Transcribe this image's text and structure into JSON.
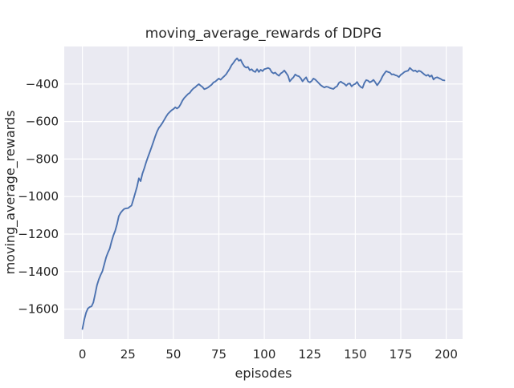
{
  "chart_data": {
    "type": "line",
    "title": "moving_average_rewards of DDPG",
    "xlabel": "episodes",
    "ylabel": "moving_average_rewards",
    "xlim": [
      -10,
      209
    ],
    "ylim": [
      -1760,
      -200
    ],
    "grid": true,
    "legend": false,
    "plot_bg": "#eaeaf2",
    "grid_color": "#ffffff",
    "line_color": "#4c72b0",
    "text_color": "#262626",
    "x_ticks": {
      "values": [
        0,
        25,
        50,
        75,
        100,
        125,
        150,
        175,
        200
      ],
      "labels": [
        "0",
        "25",
        "50",
        "75",
        "100",
        "125",
        "150",
        "175",
        "200"
      ]
    },
    "y_ticks": {
      "values": [
        -400,
        -600,
        -800,
        -1000,
        -1200,
        -1400,
        -1600
      ],
      "labels": [
        "−400",
        "−600",
        "−800",
        "−1000",
        "−1200",
        "−1400",
        "−1600"
      ]
    },
    "series": [
      {
        "name": "moving_average_rewards",
        "x_start": 0,
        "x_step": 1,
        "y": [
          -1706,
          -1656,
          -1619,
          -1597,
          -1589,
          -1585,
          -1565,
          -1520,
          -1472,
          -1442,
          -1418,
          -1397,
          -1362,
          -1325,
          -1299,
          -1278,
          -1240,
          -1207,
          -1183,
          -1148,
          -1105,
          -1087,
          -1075,
          -1066,
          -1063,
          -1062,
          -1055,
          -1048,
          -1015,
          -982,
          -948,
          -902,
          -918,
          -877,
          -849,
          -818,
          -790,
          -764,
          -737,
          -708,
          -680,
          -654,
          -634,
          -622,
          -607,
          -590,
          -574,
          -559,
          -549,
          -540,
          -534,
          -524,
          -531,
          -523,
          -508,
          -488,
          -474,
          -464,
          -454,
          -447,
          -434,
          -424,
          -417,
          -408,
          -401,
          -409,
          -416,
          -428,
          -424,
          -419,
          -411,
          -404,
          -392,
          -387,
          -379,
          -371,
          -377,
          -367,
          -358,
          -348,
          -333,
          -318,
          -299,
          -287,
          -273,
          -263,
          -276,
          -271,
          -291,
          -306,
          -313,
          -309,
          -326,
          -321,
          -331,
          -336,
          -321,
          -336,
          -324,
          -331,
          -321,
          -318,
          -314,
          -319,
          -336,
          -343,
          -339,
          -349,
          -356,
          -344,
          -337,
          -328,
          -341,
          -356,
          -386,
          -374,
          -364,
          -349,
          -356,
          -359,
          -369,
          -386,
          -374,
          -364,
          -386,
          -391,
          -384,
          -371,
          -376,
          -386,
          -396,
          -406,
          -413,
          -419,
          -414,
          -416,
          -421,
          -424,
          -426,
          -417,
          -412,
          -394,
          -387,
          -394,
          -399,
          -409,
          -399,
          -397,
          -413,
          -404,
          -399,
          -389,
          -406,
          -416,
          -421,
          -394,
          -379,
          -382,
          -391,
          -386,
          -378,
          -391,
          -407,
          -394,
          -379,
          -359,
          -344,
          -331,
          -336,
          -339,
          -349,
          -348,
          -353,
          -356,
          -363,
          -351,
          -344,
          -336,
          -332,
          -329,
          -314,
          -323,
          -331,
          -328,
          -336,
          -329,
          -333,
          -341,
          -349,
          -356,
          -351,
          -361,
          -354,
          -376,
          -367,
          -364,
          -369,
          -373,
          -379,
          -381
        ]
      }
    ]
  }
}
